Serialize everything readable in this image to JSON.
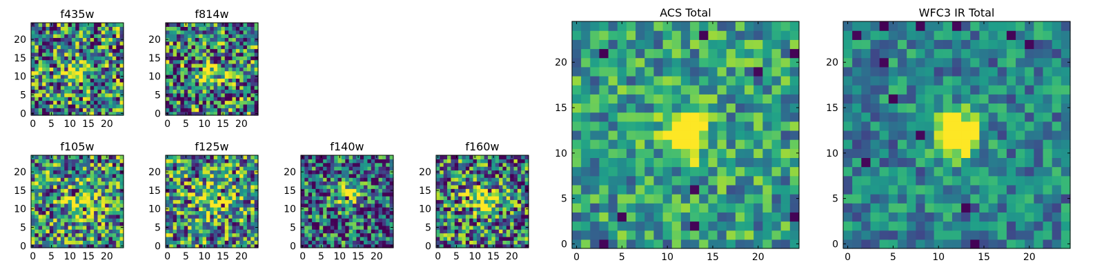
{
  "figure": {
    "colormap": "viridis",
    "colors": {
      "low": "#440154",
      "mid": "#21918c",
      "high": "#fde725",
      "frame": "#000000",
      "background": "#ffffff"
    }
  },
  "chart_data": [
    {
      "type": "heatmap",
      "title": "f435w",
      "xticks": [
        "0",
        "5",
        "10",
        "15",
        "20"
      ],
      "yticks": [
        "0",
        "5",
        "10",
        "15",
        "20"
      ],
      "xlim": [
        -0.5,
        24.5
      ],
      "ylim": [
        -0.5,
        24.5
      ],
      "grid": false,
      "image_size": [
        25,
        25
      ],
      "source_peak": [
        12,
        11
      ],
      "peak_width": 2.2,
      "peak_strength": 0.25,
      "noise": 0.55,
      "base": 0.45,
      "dark_frac": 0.025,
      "seed": 11
    },
    {
      "type": "heatmap",
      "title": "f814w",
      "xticks": [
        "0",
        "5",
        "10",
        "15",
        "20"
      ],
      "yticks": [
        "0",
        "5",
        "10",
        "15",
        "20"
      ],
      "xlim": [
        -0.5,
        24.5
      ],
      "ylim": [
        -0.5,
        24.5
      ],
      "grid": false,
      "image_size": [
        25,
        25
      ],
      "source_peak": [
        12,
        11
      ],
      "peak_width": 2.2,
      "peak_strength": 0.25,
      "noise": 0.55,
      "base": 0.45,
      "dark_frac": 0.025,
      "seed": 23
    },
    {
      "type": "heatmap",
      "title": "f105w",
      "xticks": [
        "0",
        "5",
        "10",
        "15",
        "20"
      ],
      "yticks": [
        "0",
        "5",
        "10",
        "15",
        "20"
      ],
      "xlim": [
        -0.5,
        24.5
      ],
      "ylim": [
        -0.5,
        24.5
      ],
      "grid": false,
      "image_size": [
        25,
        25
      ],
      "source_peak": [
        13,
        12
      ],
      "peak_width": 3.0,
      "peak_strength": 0.2,
      "noise": 0.5,
      "base": 0.5,
      "dark_frac": 0.02,
      "seed": 37
    },
    {
      "type": "heatmap",
      "title": "f125w",
      "xticks": [
        "0",
        "5",
        "10",
        "15",
        "20"
      ],
      "yticks": [
        "0",
        "5",
        "10",
        "15",
        "20"
      ],
      "xlim": [
        -0.5,
        24.5
      ],
      "ylim": [
        -0.5,
        24.5
      ],
      "grid": false,
      "image_size": [
        25,
        25
      ],
      "source_peak": [
        13,
        14
      ],
      "peak_width": 3.0,
      "peak_strength": 0.2,
      "noise": 0.5,
      "base": 0.5,
      "dark_frac": 0.02,
      "seed": 41
    },
    {
      "type": "heatmap",
      "title": "f140w",
      "xticks": [
        "0",
        "5",
        "10",
        "15",
        "20"
      ],
      "yticks": [
        "0",
        "5",
        "10",
        "15",
        "20"
      ],
      "xlim": [
        -0.5,
        24.5
      ],
      "ylim": [
        -0.5,
        24.5
      ],
      "grid": false,
      "image_size": [
        25,
        25
      ],
      "source_peak": [
        12,
        14
      ],
      "peak_width": 2.2,
      "peak_strength": 0.35,
      "noise": 0.5,
      "base": 0.35,
      "dark_frac": 0.03,
      "seed": 53
    },
    {
      "type": "heatmap",
      "title": "f160w",
      "xticks": [
        "0",
        "5",
        "10",
        "15",
        "20"
      ],
      "yticks": [
        "0",
        "5",
        "10",
        "15",
        "20"
      ],
      "xlim": [
        -0.5,
        24.5
      ],
      "ylim": [
        -0.5,
        24.5
      ],
      "grid": false,
      "image_size": [
        25,
        25
      ],
      "source_peak": [
        12,
        13
      ],
      "peak_width": 3.0,
      "peak_strength": 0.25,
      "noise": 0.5,
      "base": 0.45,
      "dark_frac": 0.03,
      "seed": 67
    },
    {
      "type": "heatmap",
      "title": "ACS Total",
      "xticks": [
        "0",
        "5",
        "10",
        "15",
        "20"
      ],
      "yticks": [
        "0",
        "5",
        "10",
        "15",
        "20"
      ],
      "xlim": [
        -0.5,
        24.5
      ],
      "ylim": [
        -0.5,
        24.5
      ],
      "grid": false,
      "image_size": [
        25,
        25
      ],
      "source_peak": [
        12,
        12
      ],
      "peak_width": 1.6,
      "peak_strength": 0.5,
      "noise": 0.3,
      "base": 0.55,
      "dark_frac": 0.02,
      "seed": 79
    },
    {
      "type": "heatmap",
      "title": "WFC3 IR Total",
      "xticks": [
        "0",
        "5",
        "10",
        "15",
        "20"
      ],
      "yticks": [
        "0",
        "5",
        "10",
        "15",
        "20"
      ],
      "xlim": [
        -0.5,
        24.5
      ],
      "ylim": [
        -0.5,
        24.5
      ],
      "grid": false,
      "image_size": [
        25,
        25
      ],
      "source_peak": [
        12,
        12
      ],
      "peak_width": 1.6,
      "peak_strength": 0.55,
      "noise": 0.25,
      "base": 0.45,
      "dark_frac": 0.015,
      "seed": 97
    }
  ]
}
